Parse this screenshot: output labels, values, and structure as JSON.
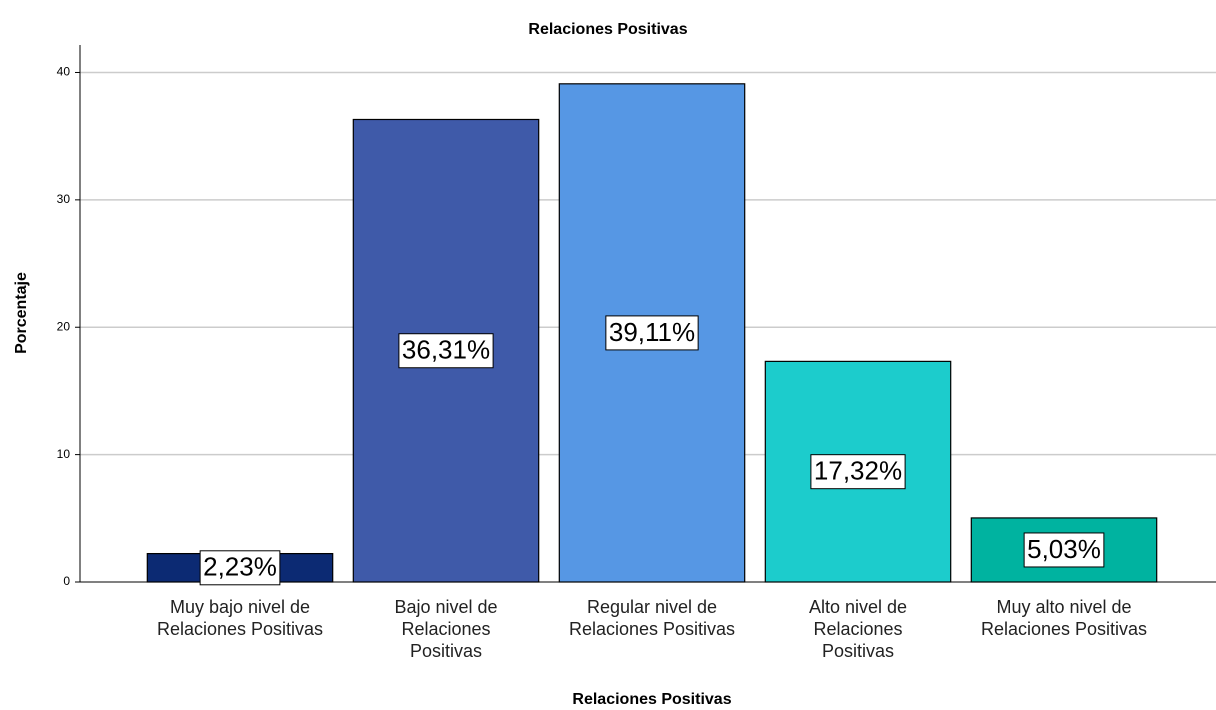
{
  "chart_data": {
    "type": "bar",
    "title": "Relaciones Positivas",
    "x_label": "Relaciones Positivas",
    "y_label": "Porcentaje",
    "categories": [
      "Muy bajo nivel de Relaciones Positivas",
      "Bajo nivel de Relaciones Positivas",
      "Regular nivel de Relaciones Positivas",
      "Alto nivel de Relaciones Positivas",
      "Muy alto nivel de Relaciones Positivas"
    ],
    "values": [
      2.23,
      36.31,
      39.11,
      17.32,
      5.03
    ],
    "value_labels": [
      "2,23%",
      "36,31%",
      "39,11%",
      "17,32%",
      "5,03%"
    ],
    "colors": [
      "#0c2a73",
      "#3f5aa9",
      "#5697e4",
      "#1ccccc",
      "#00b3a0"
    ],
    "ylim": [
      0,
      42
    ],
    "yticks": [
      0,
      10,
      20,
      30,
      40
    ],
    "grid": true
  }
}
